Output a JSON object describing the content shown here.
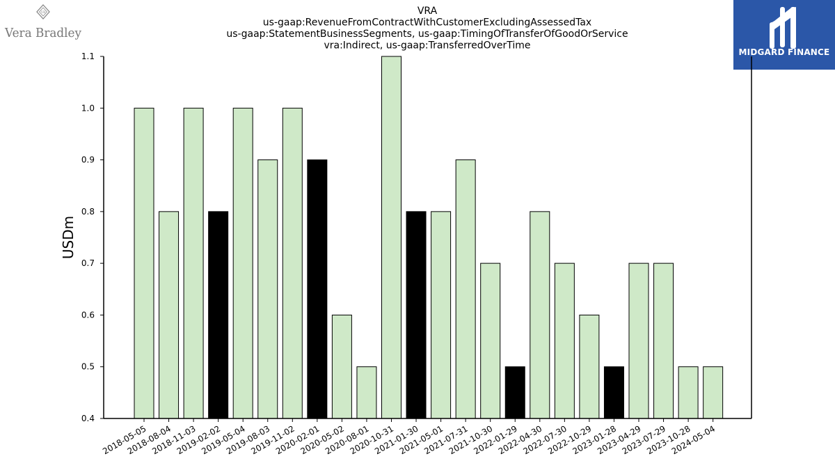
{
  "logos": {
    "left_brand": "Vera Bradley",
    "left_monogram": "VB",
    "right_brand": "MIDGARD FINANCE"
  },
  "colors": {
    "bar_default": "#cfe9c8",
    "bar_highlight": "#000000",
    "bar_edge": "#000000",
    "right_logo_bg": "#2b57a8"
  },
  "chart_data": {
    "type": "bar",
    "title": [
      "VRA",
      "us-gaap:RevenueFromContractWithCustomerExcludingAssessedTax",
      "us-gaap:StatementBusinessSegments, us-gaap:TimingOfTransferOfGoodOrService",
      "vra:Indirect, us-gaap:TransferredOverTime"
    ],
    "xlabel": "",
    "ylabel": "USDm",
    "ylim": [
      0.4,
      1.1
    ],
    "yticks": [
      "0.4",
      "0.5",
      "0.6",
      "0.7",
      "0.8",
      "0.9",
      "1.0",
      "1.1"
    ],
    "grid": false,
    "categories": [
      "2018-05-05",
      "2018-08-04",
      "2018-11-03",
      "2019-02-02",
      "2019-05-04",
      "2019-08-03",
      "2019-11-02",
      "2020-02-01",
      "2020-05-02",
      "2020-08-01",
      "2020-10-31",
      "2021-01-30",
      "2021-05-01",
      "2021-07-31",
      "2021-10-30",
      "2022-01-29",
      "2022-04-30",
      "2022-07-30",
      "2022-10-29",
      "2023-01-28",
      "2023-04-29",
      "2023-07-29",
      "2023-10-28",
      "2024-05-04"
    ],
    "values": [
      1.0,
      0.8,
      1.0,
      0.8,
      1.0,
      0.9,
      1.0,
      0.9,
      0.6,
      0.5,
      1.1,
      0.8,
      0.8,
      0.9,
      0.7,
      0.5,
      0.8,
      0.7,
      0.6,
      0.5,
      0.7,
      0.7,
      0.5,
      0.5
    ],
    "highlighted": [
      false,
      false,
      false,
      true,
      false,
      false,
      false,
      true,
      false,
      false,
      false,
      true,
      false,
      false,
      false,
      true,
      false,
      false,
      false,
      true,
      false,
      false,
      false,
      false
    ]
  }
}
